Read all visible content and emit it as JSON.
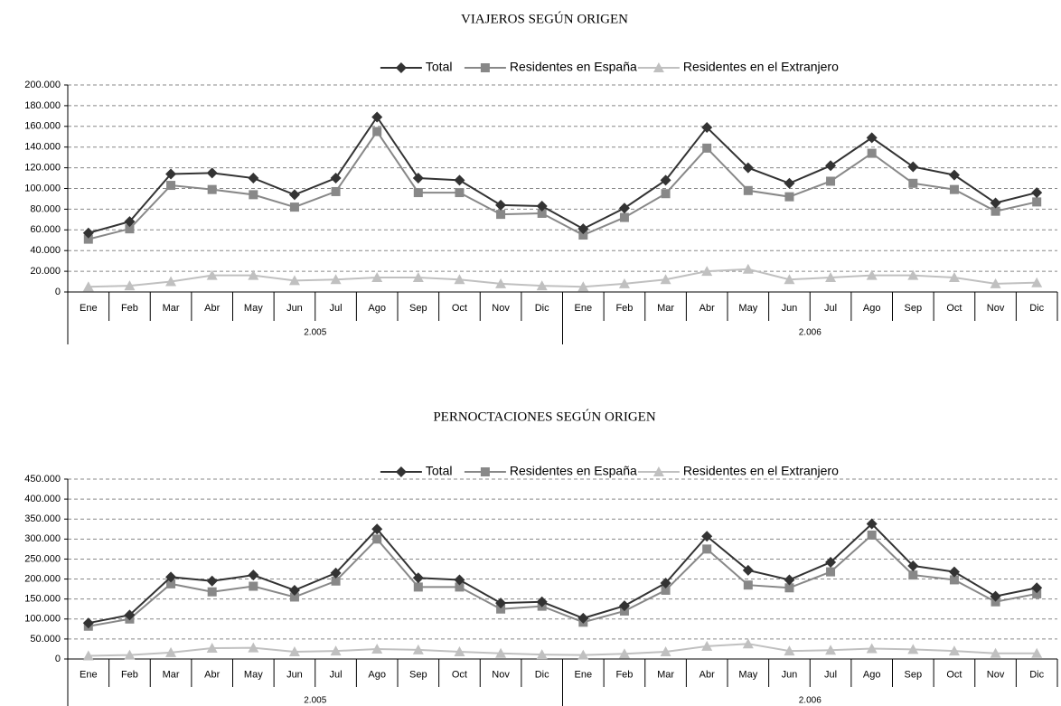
{
  "chart_data": [
    {
      "type": "line",
      "title": "VIAJEROS SEGÚN ORIGEN",
      "categories": [
        "Ene",
        "Feb",
        "Mar",
        "Abr",
        "May",
        "Jun",
        "Jul",
        "Ago",
        "Sep",
        "Oct",
        "Nov",
        "Dic",
        "Ene",
        "Feb",
        "Mar",
        "Abr",
        "May",
        "Jun",
        "Jul",
        "Ago",
        "Sep",
        "Oct",
        "Nov",
        "Dic"
      ],
      "groups": [
        "2.005",
        "2.006"
      ],
      "series": [
        {
          "name": "Total",
          "color": "#333333",
          "marker": "diamond",
          "values": [
            57000,
            68000,
            114000,
            115000,
            110000,
            94000,
            110000,
            169000,
            110000,
            108000,
            84000,
            83000,
            61000,
            81000,
            108000,
            159000,
            120000,
            105000,
            122000,
            149000,
            121000,
            113000,
            86000,
            96000
          ]
        },
        {
          "name": "Residentes en España",
          "color": "#888888",
          "marker": "square",
          "values": [
            51000,
            61000,
            103000,
            99000,
            94000,
            82000,
            97000,
            155000,
            96000,
            96000,
            75000,
            76000,
            55000,
            72000,
            95000,
            139000,
            98000,
            92000,
            107000,
            134000,
            105000,
            99000,
            78000,
            87000
          ]
        },
        {
          "name": "Residentes en el Extranjero",
          "color": "#c0c0c0",
          "marker": "triangle",
          "values": [
            5000,
            6000,
            10000,
            16000,
            16000,
            11000,
            12000,
            14000,
            14000,
            12000,
            8000,
            6000,
            5000,
            8000,
            12000,
            20000,
            22000,
            12000,
            14000,
            16000,
            16000,
            14000,
            8000,
            9000
          ]
        }
      ],
      "ylim": [
        0,
        200000
      ],
      "yticks": [
        0,
        {
          "value": 20000,
          "label": "20.000"
        },
        {
          "value": 40000,
          "label": "40.000"
        },
        {
          "value": 60000,
          "label": "60.000"
        },
        {
          "value": 80000,
          "label": "80.000"
        },
        {
          "value": 100000,
          "label": "100.000"
        },
        {
          "value": 120000,
          "label": "120.000"
        },
        {
          "value": 140000,
          "label": "140.000"
        },
        {
          "value": 160000,
          "label": "160.000"
        },
        {
          "value": 180000,
          "label": "180.000"
        },
        {
          "value": 200000,
          "label": "200.000"
        }
      ],
      "grid": true,
      "legend": "top"
    },
    {
      "type": "line",
      "title": "PERNOCTACIONES SEGÚN ORIGEN",
      "categories": [
        "Ene",
        "Feb",
        "Mar",
        "Abr",
        "May",
        "Jun",
        "Jul",
        "Ago",
        "Sep",
        "Oct",
        "Nov",
        "Dic",
        "Ene",
        "Feb",
        "Mar",
        "Abr",
        "May",
        "Jun",
        "Jul",
        "Ago",
        "Sep",
        "Oct",
        "Nov",
        "Dic"
      ],
      "groups": [
        "2.005",
        "2.006"
      ],
      "series": [
        {
          "name": "Total",
          "color": "#333333",
          "marker": "diamond",
          "values": [
            90000,
            110000,
            205000,
            195000,
            210000,
            172000,
            215000,
            325000,
            203000,
            198000,
            140000,
            143000,
            102000,
            133000,
            190000,
            307000,
            222000,
            198000,
            242000,
            338000,
            233000,
            218000,
            157000,
            178000
          ]
        },
        {
          "name": "Residentes en España",
          "color": "#888888",
          "marker": "square",
          "values": [
            82000,
            100000,
            188000,
            168000,
            182000,
            155000,
            195000,
            300000,
            180000,
            180000,
            125000,
            132000,
            92000,
            120000,
            172000,
            275000,
            185000,
            178000,
            218000,
            310000,
            210000,
            198000,
            143000,
            163000
          ]
        },
        {
          "name": "Residentes en el Extranjero",
          "color": "#c0c0c0",
          "marker": "triangle",
          "values": [
            8000,
            10000,
            16000,
            27000,
            28000,
            18000,
            20000,
            25000,
            23000,
            18000,
            14000,
            11000,
            10000,
            13000,
            18000,
            32000,
            38000,
            20000,
            22000,
            26000,
            24000,
            20000,
            14000,
            14000
          ]
        }
      ],
      "ylim": [
        0,
        450000
      ],
      "yticks": [
        0,
        {
          "value": 50000,
          "label": "50.000"
        },
        {
          "value": 100000,
          "label": "100.000"
        },
        {
          "value": 150000,
          "label": "150.000"
        },
        {
          "value": 200000,
          "label": "200.000"
        },
        {
          "value": 250000,
          "label": "250.000"
        },
        {
          "value": 300000,
          "label": "300.000"
        },
        {
          "value": 350000,
          "label": "350.000"
        },
        {
          "value": 400000,
          "label": "400.000"
        },
        {
          "value": 450000,
          "label": "450.000"
        }
      ],
      "grid": true,
      "legend": "top"
    }
  ]
}
